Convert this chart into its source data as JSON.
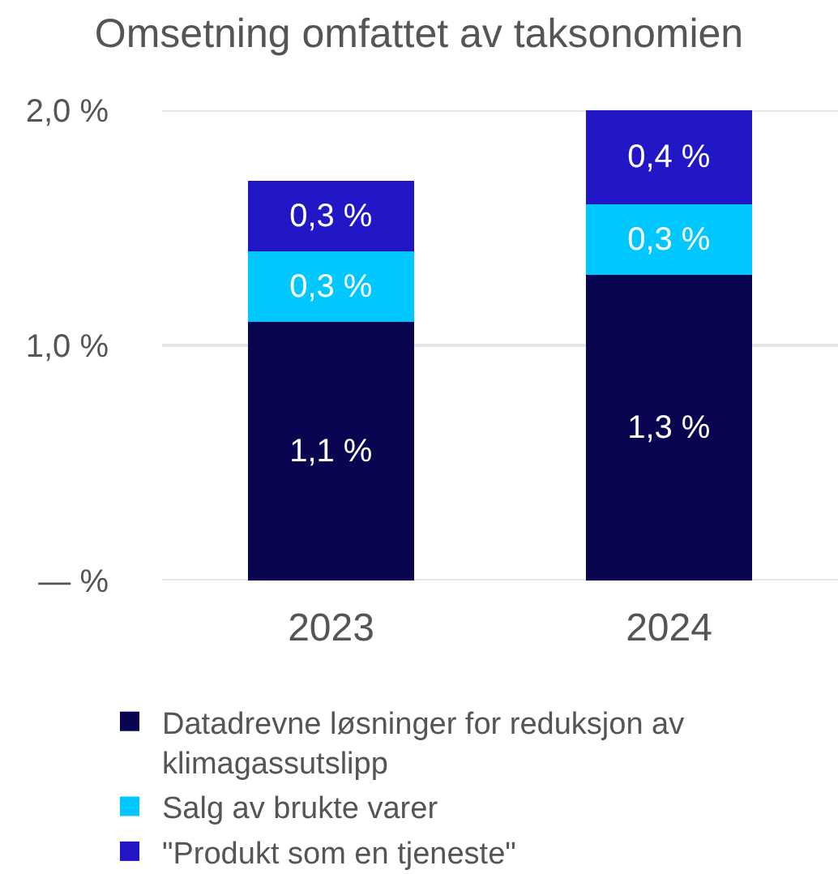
{
  "chart_data": {
    "type": "bar",
    "title": "Omsetning omfattet av taksonomien",
    "categories": [
      "2023",
      "2024"
    ],
    "stacked": true,
    "series": [
      {
        "name": "Datadrevne løsninger for reduksjon av klimagassutslipp",
        "color": "#0a0550",
        "values": [
          1.1,
          1.3
        ],
        "value_labels": [
          "1,1 %",
          "1,3 %"
        ]
      },
      {
        "name": "Salg av brukte varer",
        "color": "#00c8ff",
        "values": [
          0.3,
          0.3
        ],
        "value_labels": [
          "0,3 %",
          "0,3 %"
        ]
      },
      {
        "name": "\"Produkt som en tjeneste\"",
        "color": "#2117c6",
        "values": [
          0.3,
          0.4
        ],
        "value_labels": [
          "0,3 %",
          "0,4 %"
        ]
      }
    ],
    "ylim": [
      0,
      2
    ],
    "yticks": [
      {
        "value": 0,
        "label": "— %"
      },
      {
        "value": 1,
        "label": "1,0 %"
      },
      {
        "value": 2,
        "label": "2,0 %"
      }
    ],
    "grid": "y",
    "legend": "bottom"
  }
}
